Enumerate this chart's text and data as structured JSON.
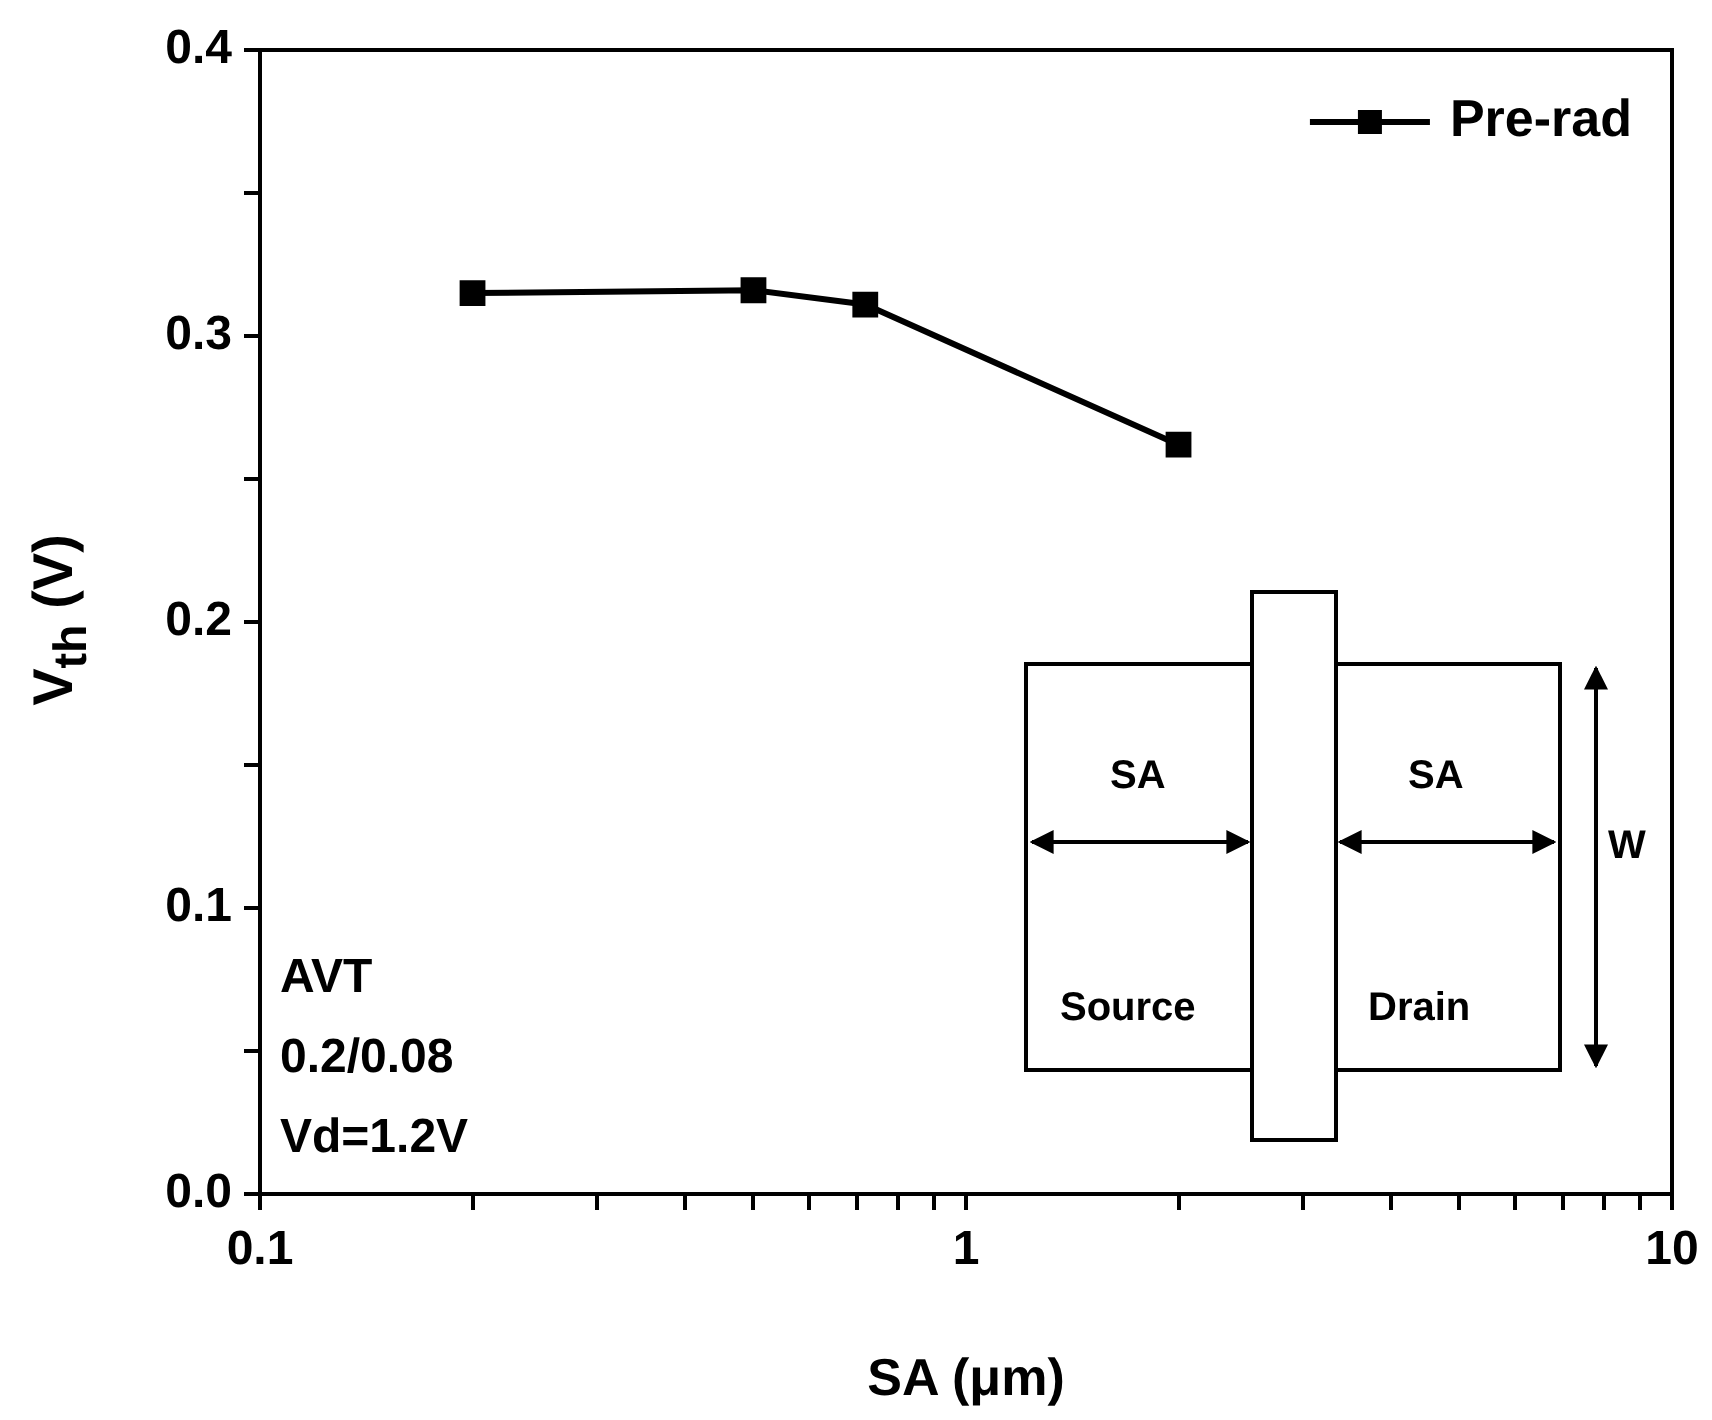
{
  "chart_data": {
    "type": "line",
    "xlabel": "SA (μm)",
    "ylabel": "V$_{th}$ (V)",
    "x": [
      0.2,
      0.5,
      0.72,
      2
    ],
    "series": [
      {
        "name": "Pre-rad",
        "color": "#000000",
        "values": [
          0.315,
          0.316,
          0.311,
          0.262
        ]
      }
    ],
    "log": "x",
    "xlim": [
      0.1,
      10
    ],
    "xticks": [
      0.1,
      {
        "value": 0.2,
        "label": null
      },
      {
        "value": 0.3,
        "label": null
      },
      {
        "value": 0.4,
        "label": null
      },
      {
        "value": 0.5,
        "label": null
      },
      {
        "value": 0.6,
        "label": null
      },
      {
        "value": 0.7,
        "label": null
      },
      {
        "value": 0.8,
        "label": null
      },
      {
        "value": 0.9,
        "label": null
      },
      1,
      {
        "value": 2,
        "label": null
      },
      {
        "value": 3,
        "label": null
      },
      {
        "value": 4,
        "label": null
      },
      {
        "value": 5,
        "label": null
      },
      {
        "value": 6,
        "label": null
      },
      {
        "value": 7,
        "label": null
      },
      {
        "value": 8,
        "label": null
      },
      {
        "value": 9,
        "label": null
      },
      10
    ],
    "ylim": [
      0,
      0.4
    ],
    "yticks": [
      {
        "value": 0,
        "label": "0.0"
      },
      {
        "value": 0.05,
        "label": null
      },
      0.1,
      {
        "value": 0.15,
        "label": null
      },
      0.2,
      {
        "value": 0.25,
        "label": null
      },
      0.3,
      {
        "value": 0.35,
        "label": null
      },
      0.4
    ],
    "grid": false,
    "legend": "top right",
    "marker": "square",
    "line_style": "solid",
    "annotations": [
      "AVT",
      "0.2/0.08",
      "Vd=1.2V",
      "SA",
      "SA",
      "W",
      "Source",
      "Drain"
    ]
  }
}
